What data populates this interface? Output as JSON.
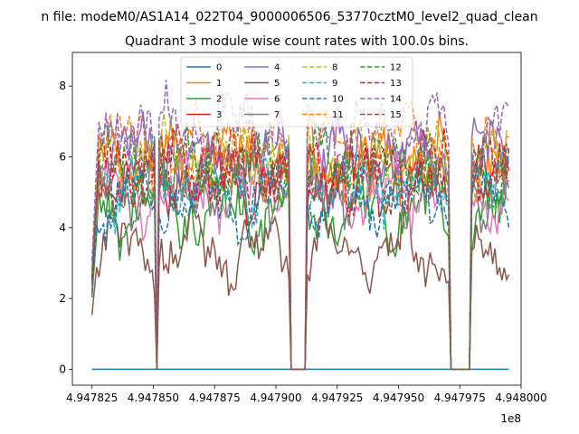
{
  "chart_data": {
    "type": "line",
    "suptitle": "n file: modeM0/AS1A14_022T04_9000006506_53770cztM0_level2_quad_clean",
    "title": "Quadrant 3 module wise count rates with 100.0s bins.",
    "xlabel": "",
    "ylabel": "",
    "x_offset_label": "1e8",
    "xlim": [
      4.947817,
      4.948
    ],
    "ylim": [
      -0.45,
      8.95
    ],
    "xticks": [
      {
        "value": 4.947825,
        "label": "4.947825"
      },
      {
        "value": 4.94785,
        "label": "4.947850"
      },
      {
        "value": 4.947875,
        "label": "4.947875"
      },
      {
        "value": 4.9479,
        "label": "4.947900"
      },
      {
        "value": 4.947925,
        "label": "4.947925"
      },
      {
        "value": 4.94795,
        "label": "4.947950"
      },
      {
        "value": 4.947975,
        "label": "4.947975"
      },
      {
        "value": 4.948,
        "label": "4.948000"
      }
    ],
    "yticks": [
      {
        "value": 0,
        "label": "0"
      },
      {
        "value": 2,
        "label": "2"
      },
      {
        "value": 4,
        "label": "4"
      },
      {
        "value": 6,
        "label": "6"
      },
      {
        "value": 8,
        "label": "8"
      }
    ],
    "legend_position": "upper center",
    "gap_ranges": [
      [
        4.947851,
        4.947852
      ],
      [
        4.947906,
        4.947912
      ],
      [
        4.947971,
        4.947979
      ]
    ],
    "baseline_x_range": [
      4.947825,
      4.947995
    ],
    "series": [
      {
        "name": "0",
        "color": "#1f77b4",
        "dash": "solid",
        "level": 0
      },
      {
        "name": "1",
        "color": "#ff7f0e",
        "dash": "solid",
        "level": 5.9
      },
      {
        "name": "2",
        "color": "#2ca02c",
        "dash": "solid",
        "level": 4.5
      },
      {
        "name": "3",
        "color": "#d62728",
        "dash": "solid",
        "level": 5.4
      },
      {
        "name": "4",
        "color": "#9467bd",
        "dash": "solid",
        "level": 6.1
      },
      {
        "name": "5",
        "color": "#8c564b",
        "dash": "solid",
        "level": 3.4
      },
      {
        "name": "6",
        "color": "#e377c2",
        "dash": "solid",
        "level": 5.0
      },
      {
        "name": "7",
        "color": "#7f7f7f",
        "dash": "solid",
        "level": 5.2
      },
      {
        "name": "8",
        "color": "#bcbd22",
        "dash": "dashed",
        "level": 6.0
      },
      {
        "name": "9",
        "color": "#17becf",
        "dash": "dashed",
        "level": 5.3
      },
      {
        "name": "10",
        "color": "#1f77b4",
        "dash": "dashed",
        "level": 4.8
      },
      {
        "name": "11",
        "color": "#ff7f0e",
        "dash": "dashed",
        "level": 6.3
      },
      {
        "name": "12",
        "color": "#2ca02c",
        "dash": "dashed",
        "level": 5.7
      },
      {
        "name": "13",
        "color": "#d62728",
        "dash": "dashed",
        "level": 5.6
      },
      {
        "name": "14",
        "color": "#9467bd",
        "dash": "dashed",
        "level": 6.8
      },
      {
        "name": "15",
        "color": "#8c564b",
        "dash": "dashed",
        "level": 5.5
      }
    ]
  }
}
